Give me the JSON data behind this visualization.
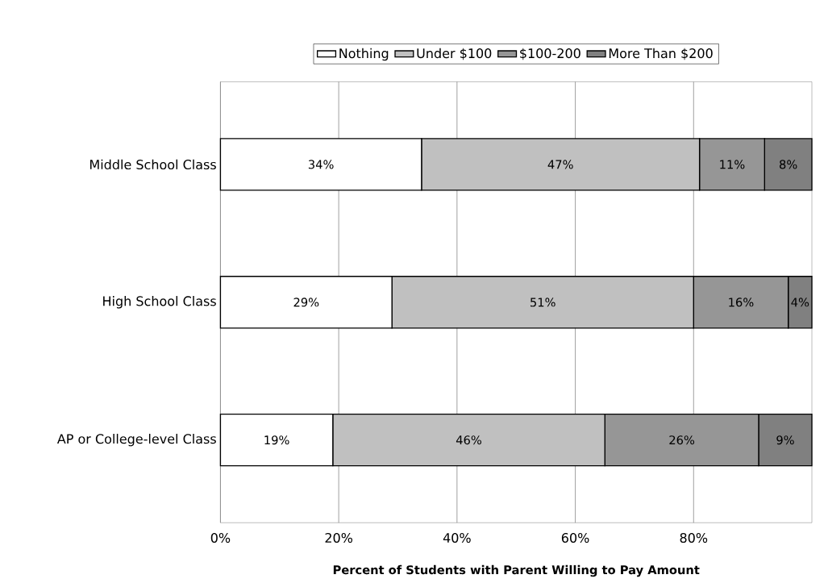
{
  "chart_data": {
    "type": "bar",
    "orientation": "horizontal",
    "stacked": true,
    "xlabel": "Percent of Students with Parent Willing to Pay Amount",
    "categories": [
      "Middle School Class",
      "High School Class",
      "AP or College-level Class"
    ],
    "series": [
      {
        "name": "Nothing",
        "color": "#ffffff",
        "values": [
          34,
          29,
          19
        ],
        "value_labels": [
          "34%",
          "29%",
          "19%"
        ]
      },
      {
        "name": "Under $100",
        "color": "#c0c0c0",
        "values": [
          47,
          51,
          46
        ],
        "value_labels": [
          "47%",
          "51%",
          "46%"
        ]
      },
      {
        "name": "$100-200",
        "color": "#969696",
        "values": [
          11,
          16,
          26
        ],
        "value_labels": [
          "11%",
          "16%",
          "26%"
        ]
      },
      {
        "name": "More Than $200",
        "color": "#808080",
        "values": [
          8,
          4,
          9
        ],
        "value_labels": [
          "8%",
          "4%",
          "9%"
        ]
      }
    ],
    "xlim": [
      0,
      100
    ],
    "xticks": [
      {
        "value": 0,
        "label": "0%"
      },
      {
        "value": 20,
        "label": "20%"
      },
      {
        "value": 40,
        "label": "40%"
      },
      {
        "value": 60,
        "label": "60%"
      },
      {
        "value": 80,
        "label": "80%"
      }
    ],
    "grid": "x",
    "legend": "top"
  }
}
